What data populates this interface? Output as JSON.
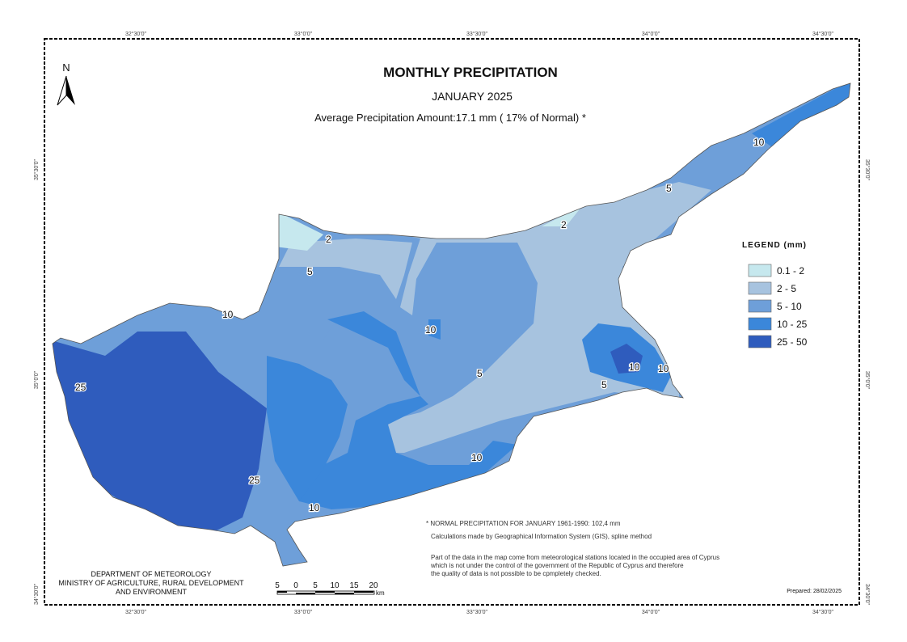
{
  "header": {
    "title": "MONTHLY  PRECIPITATION",
    "subtitle": "JANUARY 2025",
    "average": "Average Precipitation Amount:17.1 mm  ( 17% of Normal)  *"
  },
  "north_label": "N",
  "legend": {
    "title": "LEGEND (mm)",
    "items": [
      {
        "label": "0.1 - 2",
        "color": "#c6e8ee"
      },
      {
        "label": "2 - 5",
        "color": "#a7c3df"
      },
      {
        "label": "5 - 10",
        "color": "#6e9fd9"
      },
      {
        "label": "10 - 25",
        "color": "#3b87da"
      },
      {
        "label": "25 - 50",
        "color": "#2f5cbd"
      }
    ]
  },
  "contour_labels": [
    "2",
    "2",
    "5",
    "5",
    "10",
    "10",
    "10",
    "5",
    "5",
    "10",
    "10",
    "25",
    "25",
    "10",
    "10"
  ],
  "graticule": {
    "top": [
      "32°30'0\"",
      "33°0'0\"",
      "33°30'0\"",
      "34°0'0\"",
      "34°30'0\""
    ],
    "bottom": [
      "32°30'0\"",
      "33°0'0\"",
      "33°30'0\"",
      "34°0'0\"",
      "34°30'0\""
    ],
    "left": [
      "35°30'0\"",
      "35°0'0\"",
      "34°30'0\""
    ],
    "right": [
      "35°30'0\"",
      "35°0'0\"",
      "34°30'0\""
    ]
  },
  "notes": {
    "normal": "* NORMAL PRECIPITATION FOR JANUARY 1961-1990: 102,4 mm",
    "method": "Calculations made by Geographical Information System (GIS),  spline method",
    "disclaimer": [
      "Part of the data in the map come from meteorological stations located in the occupied area of Cyprus",
      "which is not under the control of the government of the Republic of Cyprus and therefore",
      "the quality of data is not possible to be cpmpletely checked."
    ]
  },
  "agency": [
    "DEPARTMENT OF METEOROLOGY",
    "MINISTRY OF AGRICULTURE, RURAL DEVELOPMENT",
    "AND ENVIRONMENT"
  ],
  "scale_bar": {
    "labels": [
      "5",
      "0",
      "5",
      "10",
      "15",
      "20"
    ],
    "unit": "km"
  },
  "prepared": "Prepared: 28/02/2025"
}
